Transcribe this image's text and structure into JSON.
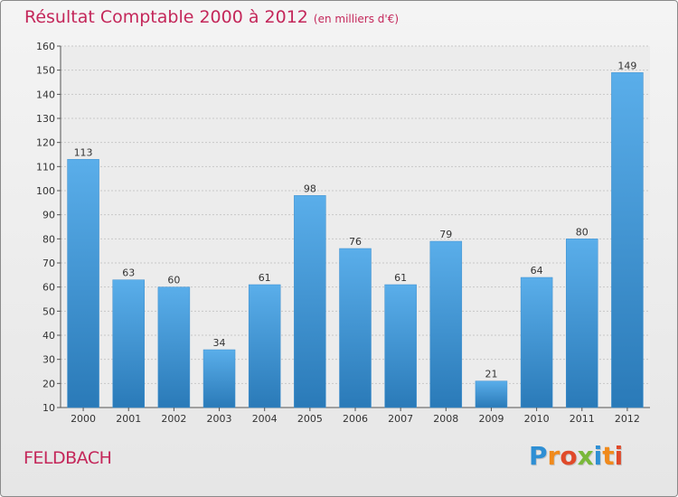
{
  "title": "Résultat Comptable 2000 à 2012",
  "subtitle": "(en milliers d'€)",
  "commune": "FELDBACH",
  "logo": {
    "letters": [
      "P",
      "r",
      "o",
      "x",
      "i",
      "t",
      "i"
    ],
    "colors": [
      "#2e8fd4",
      "#f08a1c",
      "#e04a2a",
      "#7ab83a",
      "#2e8fd4",
      "#f08a1c",
      "#e04a2a"
    ]
  },
  "colors": {
    "bar_top": "#5aaeea",
    "bar_bottom": "#2a7ab8",
    "accent": "#c4275a"
  },
  "chart_data": {
    "type": "bar",
    "title": "Résultat Comptable 2000 à 2012",
    "ylabel": "(en milliers d'€)",
    "xlabel": "",
    "categories": [
      "2000",
      "2001",
      "2002",
      "2003",
      "2004",
      "2005",
      "2006",
      "2007",
      "2008",
      "2009",
      "2010",
      "2011",
      "2012"
    ],
    "values": [
      113,
      63,
      60,
      34,
      61,
      98,
      76,
      61,
      79,
      21,
      64,
      80,
      149
    ],
    "ylim": [
      10,
      160
    ],
    "yticks": [
      10,
      20,
      30,
      40,
      50,
      60,
      70,
      80,
      90,
      100,
      110,
      120,
      130,
      140,
      150,
      160
    ],
    "grid": true
  }
}
